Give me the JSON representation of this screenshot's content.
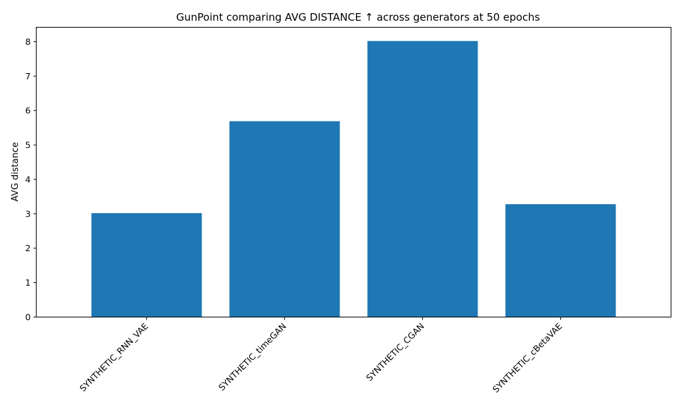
{
  "chart_data": {
    "type": "bar",
    "title": "GunPoint comparing AVG DISTANCE ↑  across generators at 50 epochs",
    "xlabel": "",
    "ylabel": "AVG distance",
    "categories": [
      "SYNTHETIC_RNN_VAE",
      "SYNTHETIC_timeGAN",
      "SYNTHETIC_CGAN",
      "SYNTHETIC_cBetaVAE"
    ],
    "values": [
      3.02,
      5.69,
      8.02,
      3.28
    ],
    "ylim": [
      0,
      8.42
    ],
    "yticks": [
      "0",
      "1",
      "2",
      "3",
      "4",
      "5",
      "6",
      "7",
      "8"
    ],
    "bar_color": "#1f77b4",
    "grid": false,
    "legend": "none"
  }
}
